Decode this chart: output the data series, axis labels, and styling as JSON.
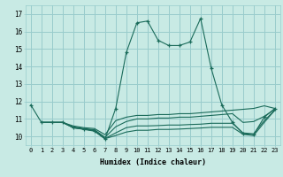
{
  "xlabel": "Humidex (Indice chaleur)",
  "xlim": [
    -0.5,
    23.5
  ],
  "ylim": [
    9.5,
    17.5
  ],
  "xtick_labels": [
    "0",
    "1",
    "2",
    "3",
    "4",
    "5",
    "6",
    "7",
    "8",
    "9",
    "10",
    "11",
    "12",
    "13",
    "14",
    "15",
    "16",
    "17",
    "18",
    "19",
    "20",
    "21",
    "22",
    "23"
  ],
  "ytick_labels": [
    "10",
    "11",
    "12",
    "13",
    "14",
    "15",
    "16",
    "17"
  ],
  "bg_color": "#c8eae4",
  "grid_color": "#99cccc",
  "line_color": "#1a6b5a",
  "lines": [
    {
      "x": [
        0,
        1,
        2,
        3,
        4,
        5,
        6,
        7,
        8,
        9,
        10,
        11,
        12,
        13,
        14,
        15,
        16,
        17,
        18,
        19,
        20,
        21,
        22,
        23
      ],
      "y": [
        11.8,
        10.8,
        10.8,
        10.8,
        10.5,
        10.4,
        10.3,
        9.85,
        11.6,
        14.8,
        16.5,
        16.6,
        15.5,
        15.2,
        15.2,
        15.4,
        16.75,
        13.9,
        11.8,
        10.8,
        10.15,
        10.1,
        11.1,
        11.6
      ],
      "marker": "+"
    },
    {
      "x": [
        1,
        2,
        3,
        4,
        5,
        6,
        7,
        8,
        9,
        10,
        11,
        12,
        13,
        14,
        15,
        16,
        17,
        18,
        19,
        20,
        21,
        22,
        23
      ],
      "y": [
        10.8,
        10.8,
        10.8,
        10.6,
        10.5,
        10.45,
        10.1,
        10.9,
        11.1,
        11.2,
        11.2,
        11.25,
        11.25,
        11.3,
        11.3,
        11.35,
        11.4,
        11.45,
        11.5,
        11.55,
        11.6,
        11.75,
        11.6
      ],
      "marker": null
    },
    {
      "x": [
        1,
        2,
        3,
        4,
        5,
        6,
        7,
        8,
        9,
        10,
        11,
        12,
        13,
        14,
        15,
        16,
        17,
        18,
        19,
        20,
        21,
        22,
        23
      ],
      "y": [
        10.8,
        10.8,
        10.8,
        10.55,
        10.45,
        10.38,
        9.95,
        10.55,
        10.85,
        11.0,
        11.0,
        11.05,
        11.05,
        11.1,
        11.1,
        11.15,
        11.2,
        11.25,
        11.3,
        10.8,
        10.85,
        11.15,
        11.55
      ],
      "marker": null
    },
    {
      "x": [
        1,
        2,
        3,
        4,
        5,
        6,
        7,
        8,
        9,
        10,
        11,
        12,
        13,
        14,
        15,
        16,
        17,
        18,
        19,
        20,
        21,
        22,
        23
      ],
      "y": [
        10.8,
        10.8,
        10.8,
        10.5,
        10.42,
        10.35,
        9.88,
        10.2,
        10.5,
        10.6,
        10.6,
        10.62,
        10.65,
        10.65,
        10.68,
        10.7,
        10.75,
        10.75,
        10.75,
        10.2,
        10.15,
        10.9,
        11.5
      ],
      "marker": null
    },
    {
      "x": [
        1,
        2,
        3,
        4,
        5,
        6,
        7,
        8,
        9,
        10,
        11,
        12,
        13,
        14,
        15,
        16,
        17,
        18,
        19,
        20,
        21,
        22,
        23
      ],
      "y": [
        10.8,
        10.8,
        10.8,
        10.5,
        10.42,
        10.32,
        9.87,
        10.05,
        10.25,
        10.35,
        10.35,
        10.4,
        10.4,
        10.42,
        10.45,
        10.48,
        10.52,
        10.52,
        10.52,
        10.12,
        10.05,
        10.8,
        11.5
      ],
      "marker": null
    }
  ]
}
